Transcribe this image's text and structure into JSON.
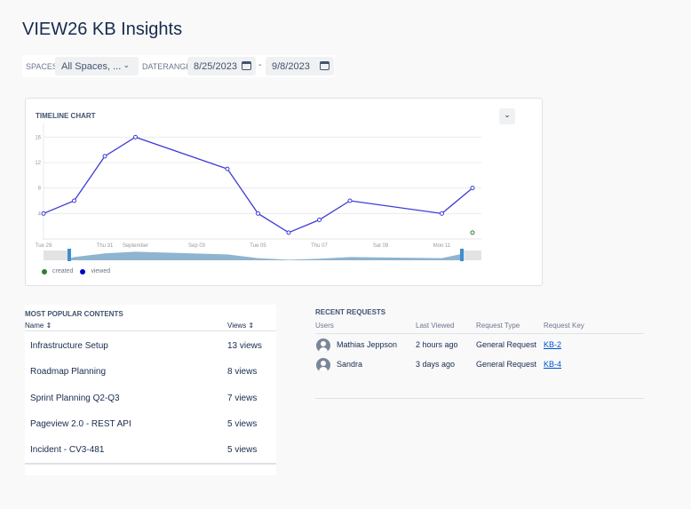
{
  "title": "VIEW26 KB Insights",
  "filters": {
    "spaces_label": "SPACES",
    "spaces_value": "All Spaces, ...",
    "daterange_label": "DATERANGE",
    "date_from": "8/25/2023",
    "separator": "-",
    "date_to": "9/8/2023"
  },
  "timeline": {
    "title": "TIMELINE CHART",
    "legend": [
      {
        "name": "created",
        "color": "#2e7d32"
      },
      {
        "name": "viewed",
        "color": "#0000cc"
      }
    ]
  },
  "chart_data": {
    "type": "line",
    "title": "TIMELINE CHART",
    "ylim": [
      0,
      18
    ],
    "yticks": [
      4,
      8,
      12,
      16
    ],
    "grid": true,
    "legend": "bottom-left",
    "xticks": [
      {
        "date": "2023-08-29",
        "label": "Tue 29"
      },
      {
        "date": "2023-08-31",
        "label": "Thu 31"
      },
      {
        "date": "2023-09-01",
        "label": "September"
      },
      {
        "date": "2023-09-03",
        "label": "Sep 03"
      },
      {
        "date": "2023-09-05",
        "label": "Tue 05"
      },
      {
        "date": "2023-09-07",
        "label": "Thu 07"
      },
      {
        "date": "2023-09-09",
        "label": "Sat 09"
      },
      {
        "date": "2023-09-11",
        "label": "Mon 11"
      }
    ],
    "xlim": [
      "2023-08-29",
      "2023-09-13"
    ],
    "series": [
      {
        "name": "viewed",
        "color": "#3b3bd6",
        "points": [
          [
            "2023-08-29",
            4
          ],
          [
            "2023-08-30",
            6
          ],
          [
            "2023-08-31",
            13
          ],
          [
            "2023-09-01",
            16
          ],
          [
            "2023-09-04",
            11
          ],
          [
            "2023-09-05",
            4
          ],
          [
            "2023-09-06",
            1
          ],
          [
            "2023-09-07",
            3
          ],
          [
            "2023-09-08",
            6
          ],
          [
            "2023-09-11",
            4
          ],
          [
            "2023-09-12",
            8
          ]
        ]
      },
      {
        "name": "created",
        "color": "#2e7d32",
        "points": [
          [
            "2023-09-12",
            1
          ]
        ]
      }
    ]
  },
  "popular": {
    "title": "MOST POPULAR CONTENTS",
    "col_name": "Name ⇕",
    "col_views": "Views ⇕",
    "rows": [
      {
        "name": "Infrastructure Setup",
        "views": "13 views"
      },
      {
        "name": "Roadmap Planning",
        "views": "8 views"
      },
      {
        "name": "Sprint Planning Q2-Q3",
        "views": "7 views"
      },
      {
        "name": "Pageview 2.0 - REST API",
        "views": "5 views"
      },
      {
        "name": "Incident - CV3-481",
        "views": "5 views"
      }
    ]
  },
  "recent": {
    "title": "RECENT REQUESTS",
    "cols": [
      "Users",
      "Last Viewed",
      "Request Type",
      "Request Key"
    ],
    "rows": [
      {
        "user": "Mathias Jeppson",
        "last": "2 hours ago",
        "type": "General Request",
        "key": "KB-2"
      },
      {
        "user": "Sandra",
        "last": "3 days ago",
        "type": "General Request",
        "key": "KB-4"
      }
    ]
  }
}
